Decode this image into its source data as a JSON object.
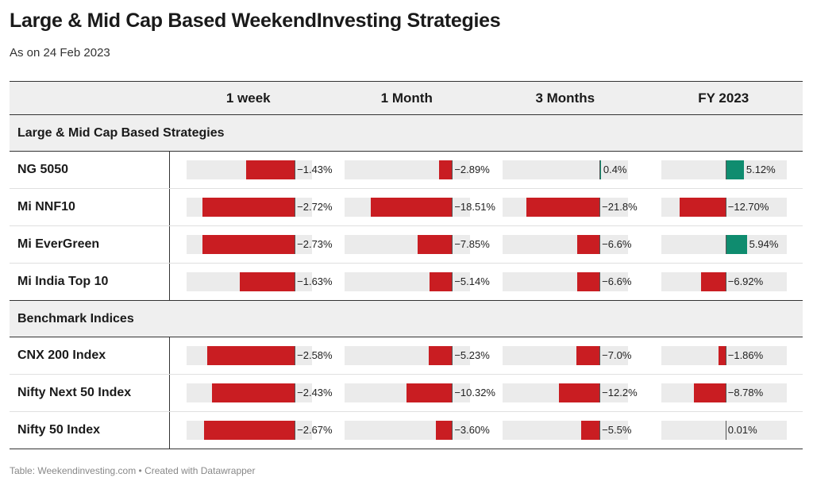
{
  "title": "Large & Mid Cap Based WeekendInvesting Strategies",
  "subtitle": "As on 24 Feb 2023",
  "footer": "Table: Weekendinvesting.com • Created with Datawrapper",
  "colors": {
    "negative": "#c91d22",
    "positive": "#0f8c6f",
    "track": "#ebebeb"
  },
  "chart_data": {
    "type": "table",
    "columns": [
      "1 week",
      "1 Month",
      "3 Months",
      "FY 2023"
    ],
    "column_ranges": [
      [
        -3.2,
        0.5
      ],
      [
        -24.5,
        4
      ],
      [
        -29,
        8.5
      ],
      [
        -18,
        17
      ]
    ],
    "groups": [
      {
        "name": "Large & Mid Cap Based Strategies",
        "rows": [
          {
            "name": "NG 5050",
            "values": [
              -1.43,
              -2.89,
              0.4,
              5.12
            ],
            "labels": [
              "−1.43%",
              "−2.89%",
              "0.4%",
              "5.12%"
            ]
          },
          {
            "name": "Mi NNF10",
            "values": [
              -2.72,
              -18.51,
              -21.8,
              -12.7
            ],
            "labels": [
              "−2.72%",
              "−18.51%",
              "−21.8%",
              "−12.70%"
            ]
          },
          {
            "name": "Mi EverGreen",
            "values": [
              -2.73,
              -7.85,
              -6.6,
              5.94
            ],
            "labels": [
              "−2.73%",
              "−7.85%",
              "−6.6%",
              "5.94%"
            ]
          },
          {
            "name": "Mi India Top 10",
            "values": [
              -1.63,
              -5.14,
              -6.6,
              -6.92
            ],
            "labels": [
              "−1.63%",
              "−5.14%",
              "−6.6%",
              "−6.92%"
            ]
          }
        ]
      },
      {
        "name": "Benchmark Indices",
        "rows": [
          {
            "name": "CNX 200 Index",
            "values": [
              -2.58,
              -5.23,
              -7.0,
              -1.86
            ],
            "labels": [
              "−2.58%",
              "−5.23%",
              "−7.0%",
              "−1.86%"
            ]
          },
          {
            "name": "Nifty Next 50 Index",
            "values": [
              -2.43,
              -10.32,
              -12.2,
              -8.78
            ],
            "labels": [
              "−2.43%",
              "−10.32%",
              "−12.2%",
              "−8.78%"
            ]
          },
          {
            "name": "Nifty 50 Index",
            "values": [
              -2.67,
              -3.6,
              -5.5,
              0.01
            ],
            "labels": [
              "−2.67%",
              "−3.60%",
              "−5.5%",
              "0.01%"
            ]
          }
        ]
      }
    ]
  }
}
